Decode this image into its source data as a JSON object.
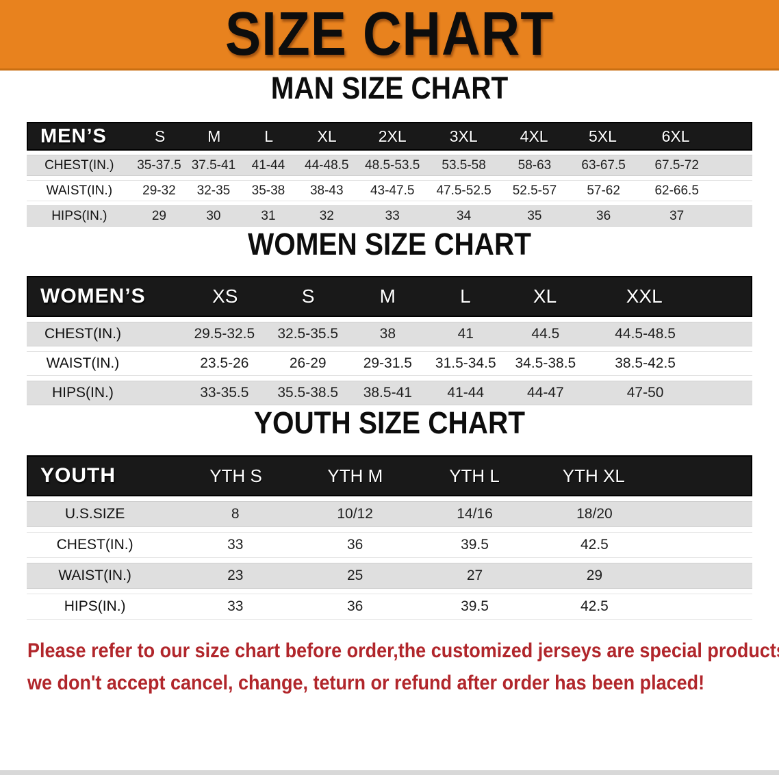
{
  "banner": {
    "title": "SIZE CHART"
  },
  "sections": {
    "men": {
      "heading": "MAN SIZE CHART",
      "table": {
        "title": "MEN’S",
        "columns": [
          "S",
          "M",
          "L",
          "XL",
          "2XL",
          "3XL",
          "4XL",
          "5XL",
          "6XL"
        ],
        "rows": [
          {
            "label": "CHEST(IN.)",
            "values": [
              "35-37.5",
              "37.5-41",
              "41-44",
              "44-48.5",
              "48.5-53.5",
              "53.5-58",
              "58-63",
              "63-67.5",
              "67.5-72"
            ]
          },
          {
            "label": "WAIST(IN.)",
            "values": [
              "29-32",
              "32-35",
              "35-38",
              "38-43",
              "43-47.5",
              "47.5-52.5",
              "52.5-57",
              "57-62",
              "62-66.5"
            ]
          },
          {
            "label": "HIPS(IN.)",
            "values": [
              "29",
              "30",
              "31",
              "32",
              "33",
              "34",
              "35",
              "36",
              "37"
            ]
          }
        ]
      }
    },
    "women": {
      "heading": "WOMEN SIZE CHART",
      "table": {
        "title": "WOMEN’S",
        "columns": [
          "XS",
          "S",
          "M",
          "L",
          "XL",
          "XXL"
        ],
        "rows": [
          {
            "label": "CHEST(IN.)",
            "values": [
              "29.5-32.5",
              "32.5-35.5",
              "38",
              "41",
              "44.5",
              "44.5-48.5"
            ]
          },
          {
            "label": "WAIST(IN.)",
            "values": [
              "23.5-26",
              "26-29",
              "29-31.5",
              "31.5-34.5",
              "34.5-38.5",
              "38.5-42.5"
            ]
          },
          {
            "label": "HIPS(IN.)",
            "values": [
              "33-35.5",
              "35.5-38.5",
              "38.5-41",
              "41-44",
              "44-47",
              "47-50"
            ]
          }
        ]
      }
    },
    "youth": {
      "heading": "YOUTH SIZE CHART",
      "table": {
        "title": "YOUTH",
        "columns": [
          "YTH S",
          "YTH M",
          "YTH L",
          "YTH XL"
        ],
        "rows": [
          {
            "label": "U.S.SIZE",
            "values": [
              "8",
              "10/12",
              "14/16",
              "18/20"
            ]
          },
          {
            "label": "CHEST(IN.)",
            "values": [
              "33",
              "36",
              "39.5",
              "42.5"
            ]
          },
          {
            "label": "WAIST(IN.)",
            "values": [
              "23",
              "25",
              "27",
              "29"
            ]
          },
          {
            "label": "HIPS(IN.)",
            "values": [
              "33",
              "36",
              "39.5",
              "42.5"
            ]
          }
        ]
      }
    }
  },
  "disclaimer": {
    "line1": "Please refer to our size chart before order,the customized jerseys are special products,",
    "line2": "we don't accept cancel, change, teturn or refund after order has been placed!"
  },
  "colors": {
    "banner_orange": "#E8821E",
    "header_black": "#191919",
    "row_gray": "#DFDFDF",
    "disclaimer_red": "#B1262B"
  }
}
